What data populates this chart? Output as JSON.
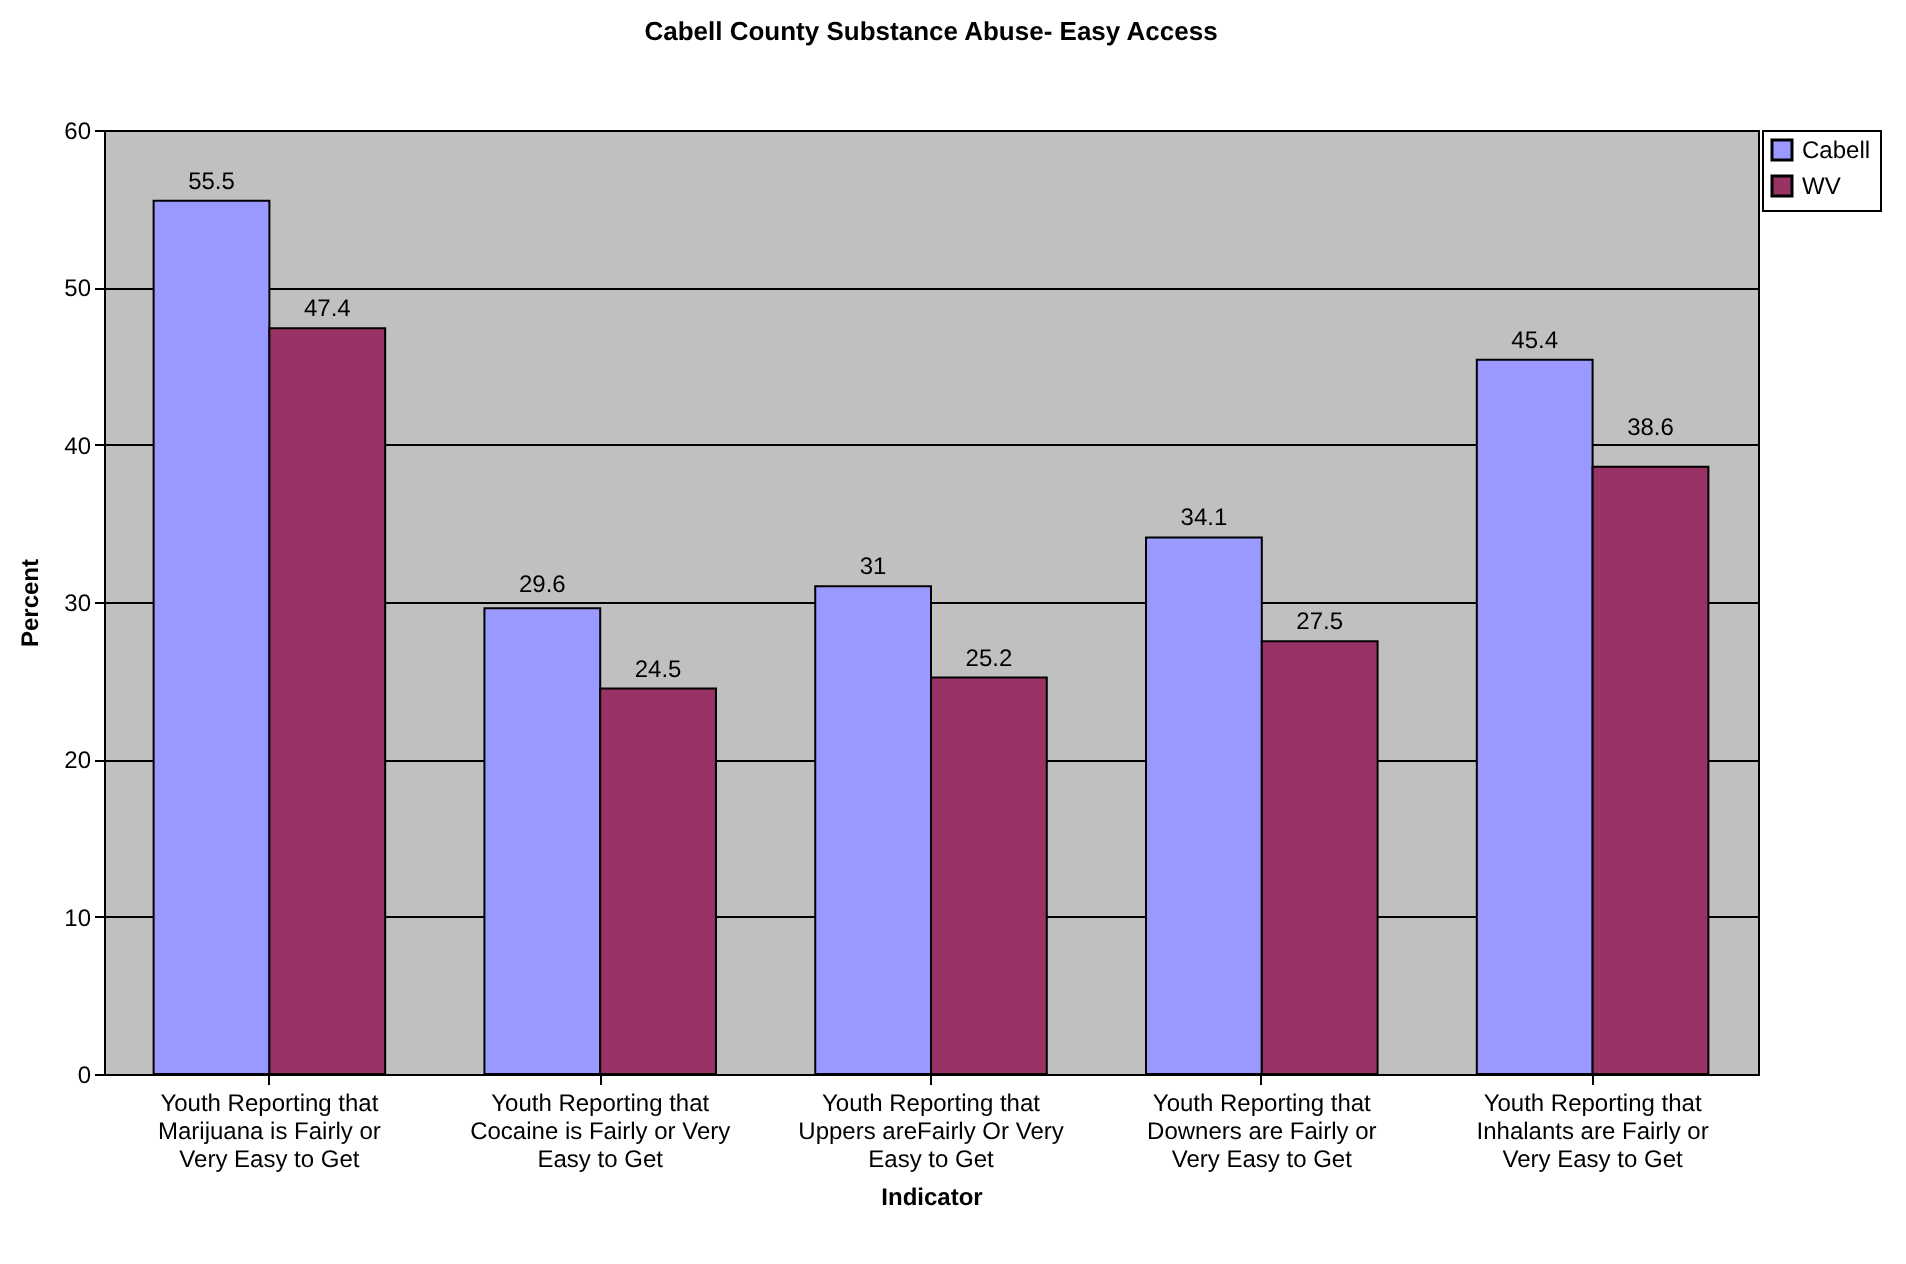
{
  "chart_data": {
    "type": "bar",
    "title": "Cabell County Substance Abuse- Easy Access",
    "xlabel": "Indicator",
    "ylabel": "Percent",
    "categories": [
      "Youth Reporting that Marijuana is Fairly or Very Easy to Get",
      "Youth Reporting that Cocaine is Fairly or Very Easy to Get",
      "Youth Reporting that Uppers areFairly Or Very Easy to Get",
      "Youth Reporting that Downers are Fairly or Very Easy to Get",
      "Youth Reporting that Inhalants are Fairly or Very Easy to Get"
    ],
    "series": [
      {
        "name": "Cabell",
        "color": "#9999ff",
        "values": [
          55.5,
          29.6,
          31,
          34.1,
          45.4
        ]
      },
      {
        "name": "WV",
        "color": "#993366",
        "values": [
          47.4,
          24.5,
          25.2,
          27.5,
          38.6
        ]
      }
    ],
    "ylim": [
      0,
      60
    ],
    "yticks": [
      0,
      10,
      20,
      30,
      40,
      50,
      60
    ],
    "grid": "y",
    "legend": "right",
    "data_labels": true
  }
}
